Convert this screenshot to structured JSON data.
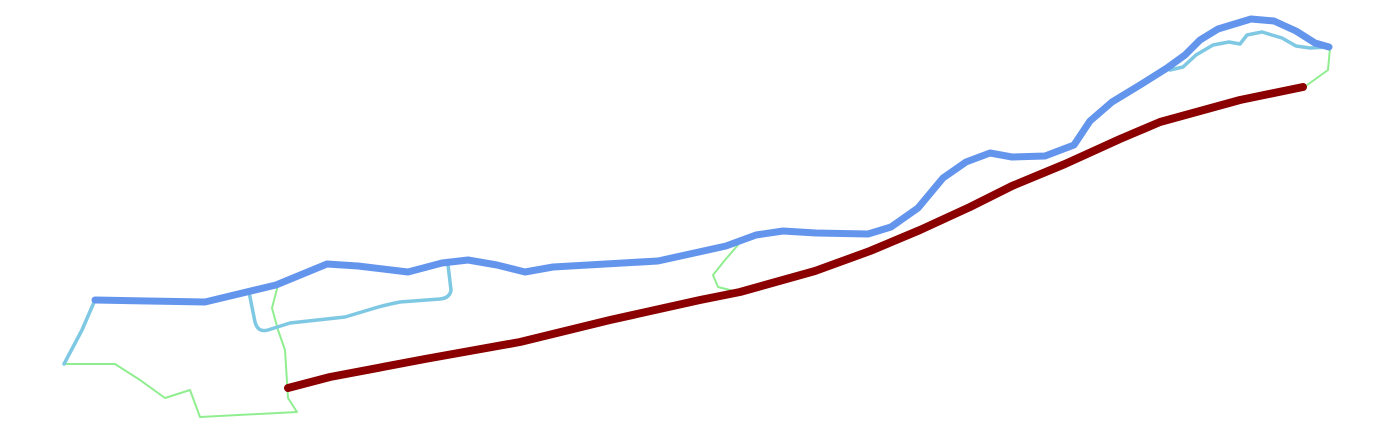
{
  "map": {
    "background": "#ffffff",
    "layers": [
      {
        "id": "minor-paths",
        "kind": "footpath",
        "color": "#90ee90"
      },
      {
        "id": "secondary-paths",
        "kind": "trail",
        "color": "#7ec8e3"
      },
      {
        "id": "main-riverside-route",
        "kind": "main-route",
        "color": "#6495ed"
      },
      {
        "id": "road",
        "kind": "road",
        "color": "#8b0000"
      }
    ]
  }
}
